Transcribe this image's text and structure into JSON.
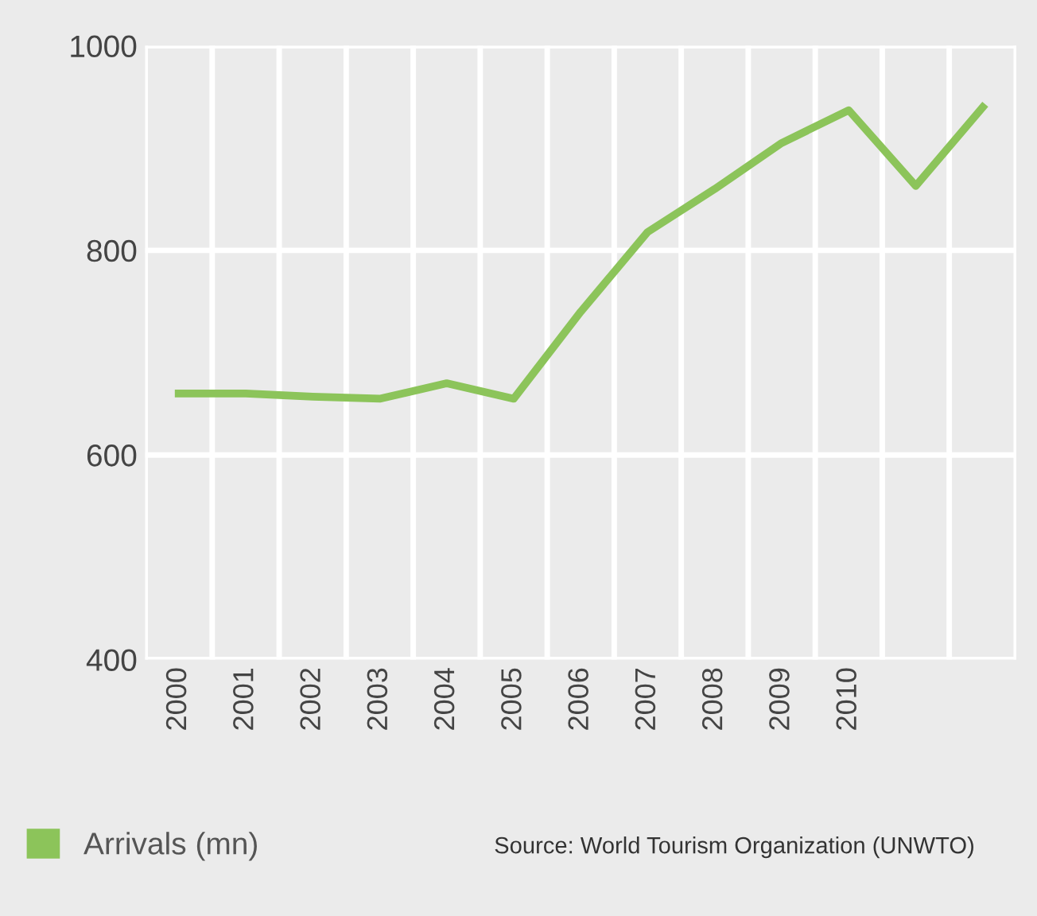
{
  "chart_data": {
    "type": "line",
    "categories": [
      "2000",
      "2001",
      "2002",
      "2003",
      "2004",
      "2005",
      "2006",
      "2007",
      "2008",
      "2009",
      "2010",
      null,
      null
    ],
    "series": [
      {
        "name": "Arrivals (mn)",
        "color": "#8cc45a",
        "values": [
          660,
          660,
          657,
          655,
          670,
          655,
          740,
          818,
          860,
          905,
          937,
          863,
          940
        ]
      }
    ],
    "ylim": [
      400,
      1000
    ],
    "yticks": [
      400,
      600,
      800,
      1000
    ],
    "grid": true,
    "legend": "bottom left",
    "marker": "none",
    "line_style": "solid",
    "annotations": [
      "Source: World Tourism Organization (UNWTO)"
    ]
  }
}
